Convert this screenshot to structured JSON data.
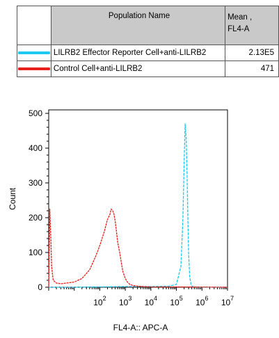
{
  "legend": {
    "header_name": "Population Name",
    "header_mean": "Mean , FL4-A",
    "header_mean_line1": "Mean ,",
    "header_mean_line2": "FL4-A",
    "rows": [
      {
        "name": "LILRB2 Effector Reporter Cell+anti-LILRB2",
        "mean": "2.13E5",
        "color": "#1ec8f0"
      },
      {
        "name": "Control Cell+anti-LILRB2",
        "mean": "471",
        "color": "#e8201c"
      }
    ]
  },
  "chart_data": {
    "type": "line",
    "xlabel": "FL4-A:: APC-A",
    "ylabel": "Count",
    "xscale": "log",
    "xlim": [
      1,
      10000000
    ],
    "ylim": [
      0,
      510
    ],
    "yticks": [
      0,
      100,
      200,
      300,
      400,
      500
    ],
    "xtick_labels": [
      {
        "base": "10",
        "exp": "2"
      },
      {
        "base": "10",
        "exp": "3"
      },
      {
        "base": "10",
        "exp": "4"
      },
      {
        "base": "10",
        "exp": "5"
      },
      {
        "base": "10",
        "exp": "6"
      },
      {
        "base": "10",
        "exp": "7"
      }
    ],
    "series": [
      {
        "name": "LILRB2 Effector Reporter Cell+anti-LILRB2",
        "color": "#1ec8f0",
        "x": [
          1,
          10,
          100,
          1000,
          10000,
          50000,
          100000,
          150000,
          180000,
          200000,
          220000,
          240000,
          260000,
          280000,
          300000,
          330000,
          380000,
          450000,
          1000000,
          10000000
        ],
        "y": [
          0,
          0,
          1,
          2,
          2,
          3,
          8,
          60,
          200,
          360,
          470,
          430,
          330,
          200,
          100,
          30,
          5,
          1,
          0,
          0
        ]
      },
      {
        "name": "Control Cell+anti-LILRB2",
        "color": "#e8201c",
        "x": [
          1,
          1.1,
          1.2,
          1.3,
          1.5,
          2,
          3,
          5,
          10,
          20,
          40,
          70,
          100,
          150,
          200,
          250,
          280,
          320,
          360,
          400,
          450,
          500,
          600,
          700,
          800,
          1000,
          1200,
          1500,
          2000,
          3000,
          5000,
          10000,
          100000,
          10000000
        ],
        "y": [
          0,
          225,
          150,
          60,
          20,
          12,
          10,
          12,
          15,
          25,
          50,
          90,
          120,
          160,
          195,
          210,
          225,
          220,
          210,
          190,
          160,
          130,
          100,
          70,
          45,
          25,
          15,
          8,
          5,
          3,
          2,
          1,
          1,
          0
        ]
      }
    ]
  }
}
